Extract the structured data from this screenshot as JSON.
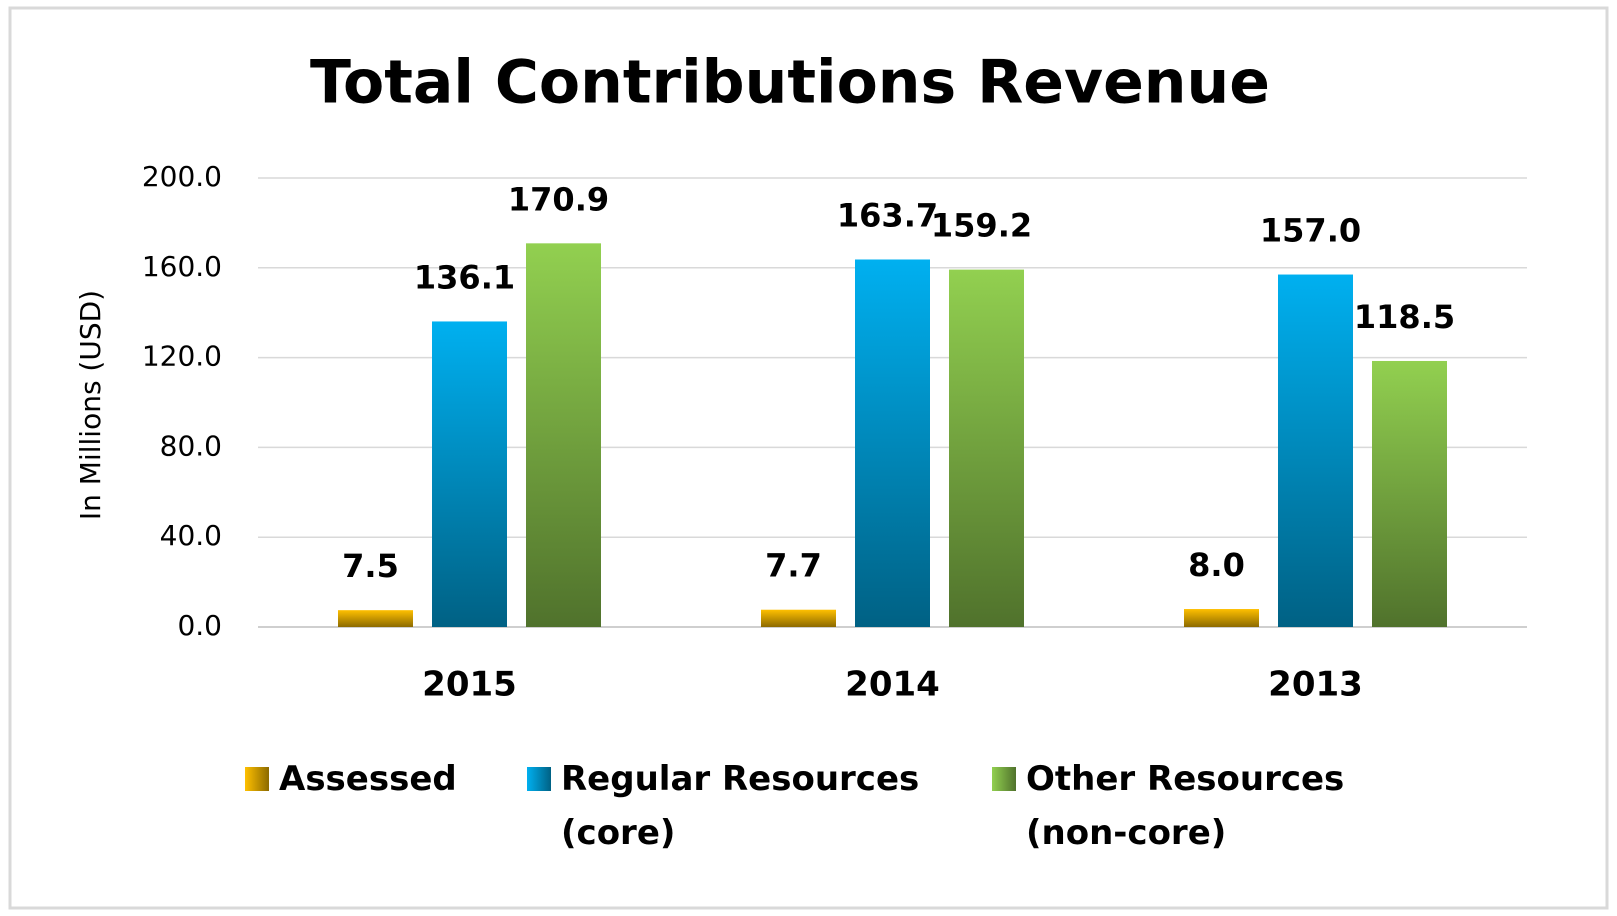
{
  "chart_data": {
    "type": "bar",
    "title": "Total Contributions Revenue",
    "y_label": "In Millions (USD)",
    "categories": [
      "2015",
      "2014",
      "2013"
    ],
    "series": [
      {
        "name": "Assessed",
        "color": "#ffc000",
        "values": [
          7.5,
          7.7,
          8.0
        ],
        "value_labels": [
          "7.5",
          "7.7",
          "8.0"
        ]
      },
      {
        "name": "Regular Resources (core)",
        "color": "#00b0f0",
        "values": [
          136.1,
          163.7,
          157.0
        ],
        "value_labels": [
          "136.1",
          "163.7",
          "157.0"
        ]
      },
      {
        "name": "Other Resources (non-core)",
        "color": "#92d050",
        "values": [
          170.9,
          159.2,
          118.5
        ],
        "value_labels": [
          "170.9",
          "159.2",
          "118.5"
        ]
      }
    ],
    "ylim": [
      0,
      200
    ],
    "yticks": [
      {
        "value": 0,
        "label": "0.0"
      },
      {
        "value": 40,
        "label": "40.0"
      },
      {
        "value": 80,
        "label": "80.0"
      },
      {
        "value": 120,
        "label": "120.0"
      },
      {
        "value": 160,
        "label": "160.0"
      },
      {
        "value": 200,
        "label": "200.0"
      }
    ],
    "grid": true
  }
}
